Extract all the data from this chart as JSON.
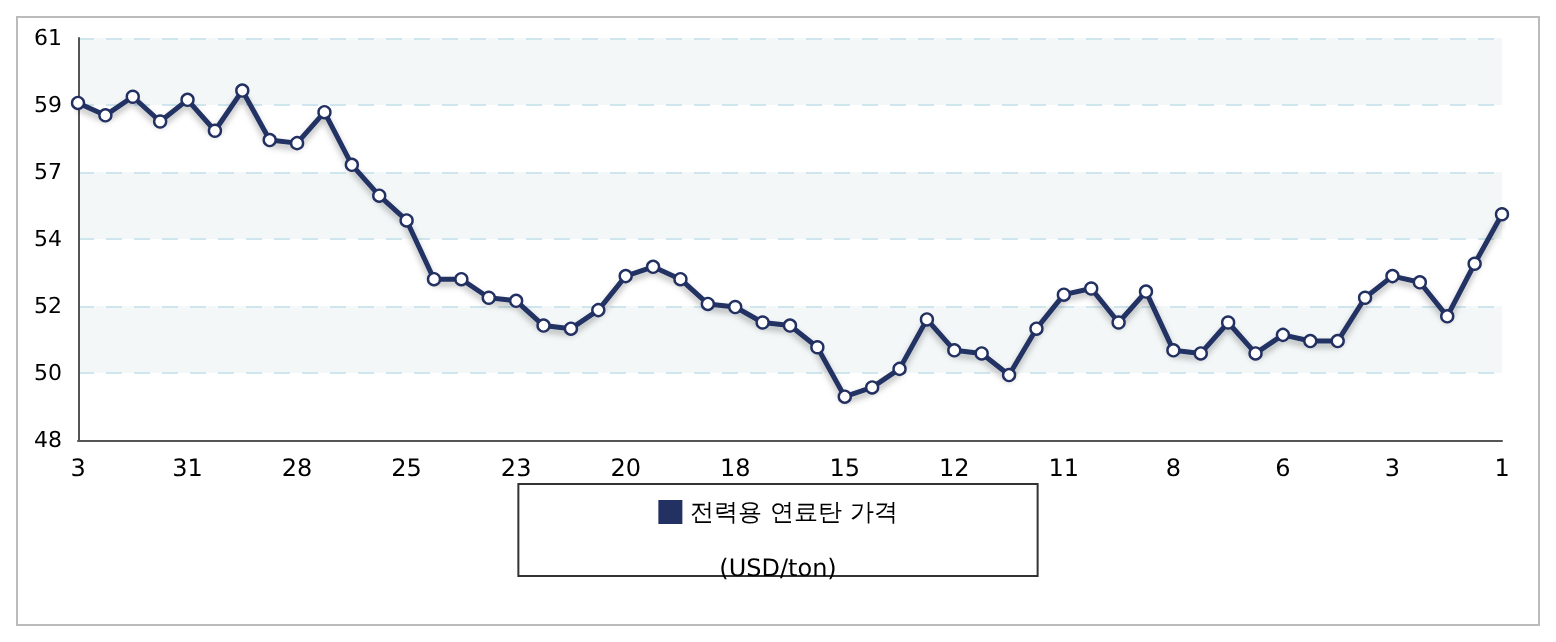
{
  "chart_data": {
    "type": "line",
    "categories": [
      "3",
      null,
      null,
      null,
      "31",
      null,
      null,
      null,
      "28",
      null,
      null,
      null,
      "25",
      null,
      null,
      null,
      "23",
      null,
      null,
      null,
      "20",
      null,
      null,
      null,
      "18",
      null,
      null,
      null,
      "15",
      null,
      null,
      null,
      "12",
      null,
      null,
      null,
      "11",
      null,
      null,
      null,
      "8",
      null,
      null,
      null,
      "6",
      null,
      null,
      null,
      "3",
      null,
      null,
      null,
      "1"
    ],
    "series": [
      {
        "name": "전력용 연료탄 가격",
        "color": "#223062",
        "values": [
          58.9,
          58.5,
          59.1,
          58.3,
          59.0,
          58.0,
          59.3,
          57.7,
          57.6,
          58.6,
          56.9,
          55.9,
          55.1,
          53.2,
          53.2,
          52.6,
          52.5,
          51.7,
          51.6,
          52.2,
          53.3,
          53.6,
          53.2,
          52.4,
          52.3,
          51.8,
          51.7,
          51.0,
          49.4,
          49.7,
          50.3,
          51.9,
          50.9,
          50.8,
          50.1,
          51.6,
          52.7,
          52.9,
          51.8,
          52.8,
          50.9,
          50.8,
          51.8,
          50.8,
          51.4,
          51.2,
          51.2,
          52.6,
          53.3,
          53.1,
          52.0,
          53.7,
          55.3
        ]
      }
    ],
    "annotations": [
      "(USD/ton)"
    ],
    "ylim": [
      48,
      61
    ],
    "yticks": [
      48,
      {
        "value": 50.1667,
        "label": "50"
      },
      {
        "value": 52.3333,
        "label": "52"
      },
      {
        "value": 54.5,
        "label": "54"
      },
      {
        "value": 56.6667,
        "label": "57"
      },
      {
        "value": 58.8333,
        "label": "59"
      },
      61
    ],
    "grid": "y",
    "legend": "bottom",
    "marker": "circle",
    "line_style": "solid"
  }
}
